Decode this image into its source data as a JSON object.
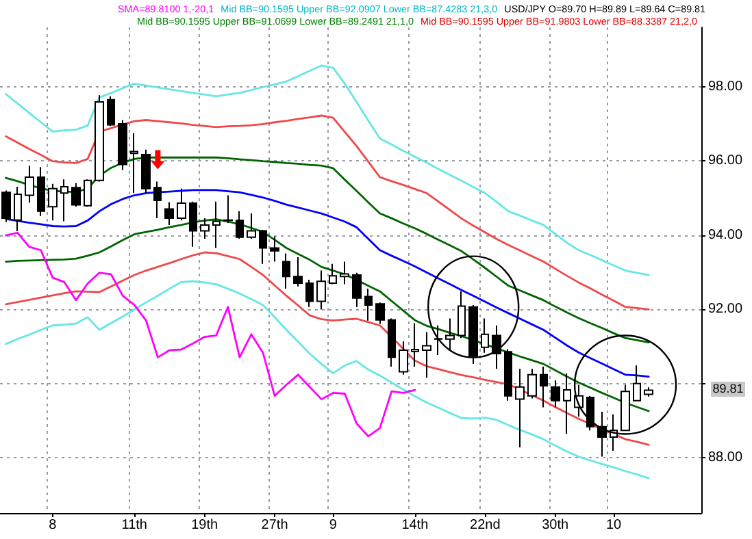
{
  "chart_data": {
    "type": "candlestick",
    "annotations": [
      "SMA=89.8100 1,-20,1",
      "Mid BB=90.1595 Upper BB=92.0907 Lower BB=87.4283 21,3,0",
      "USD/JPY O=89.70 H=89.89 L=89.64 C=89.81",
      "Mid BB=90.1595 Upper BB=91.0699 Lower BB=89.2491 21,1,0",
      "Mid BB=90.1595 Upper BB=91.9803 Lower BB=88.3387 21,2,0",
      "89.81"
    ],
    "categories": [
      null,
      null,
      null,
      null,
      "8",
      null,
      null,
      null,
      null,
      null,
      null,
      "11th",
      null,
      null,
      null,
      null,
      null,
      "19th",
      null,
      null,
      null,
      null,
      null,
      "27th",
      null,
      null,
      null,
      null,
      "9",
      null,
      null,
      null,
      null,
      null,
      null,
      "14th",
      null,
      null,
      null,
      null,
      null,
      "22nd",
      null,
      null,
      null,
      null,
      null,
      "30th",
      null,
      null,
      null,
      null,
      "10",
      null,
      null,
      null,
      null,
      null,
      null,
      null
    ],
    "ohlc": [
      [
        95.15,
        95.2,
        94.35,
        94.45
      ],
      [
        94.4,
        95.3,
        94.1,
        95.1
      ],
      [
        95.07,
        95.87,
        94.87,
        95.56
      ],
      [
        95.56,
        95.83,
        94.51,
        94.64
      ],
      [
        94.76,
        95.38,
        94.39,
        95.25
      ],
      [
        95.13,
        95.5,
        94.37,
        95.3
      ],
      [
        95.28,
        95.4,
        94.76,
        94.81
      ],
      [
        94.79,
        95.5,
        94.76,
        95.47
      ],
      [
        95.47,
        97.77,
        95.44,
        97.59
      ],
      [
        97.65,
        97.74,
        96.94,
        96.97
      ],
      [
        97.0,
        97.1,
        95.75,
        95.9
      ],
      [
        96.2,
        96.75,
        95.13,
        96.25
      ],
      [
        96.17,
        96.3,
        95.13,
        95.25
      ],
      [
        95.28,
        95.44,
        94.45,
        94.93
      ],
      [
        94.7,
        94.88,
        94.27,
        94.45
      ],
      [
        94.45,
        95.25,
        94.39,
        94.86
      ],
      [
        94.86,
        94.9,
        93.68,
        94.11
      ],
      [
        94.11,
        94.45,
        93.9,
        94.27
      ],
      [
        94.27,
        94.9,
        93.65,
        94.37
      ],
      [
        94.39,
        95.07,
        94.33,
        94.4
      ],
      [
        94.39,
        94.64,
        93.9,
        93.94
      ],
      [
        93.94,
        94.58,
        93.9,
        94.11
      ],
      [
        94.11,
        94.14,
        93.22,
        93.65
      ],
      [
        93.65,
        93.96,
        93.28,
        93.57
      ],
      [
        93.28,
        93.5,
        92.55,
        92.88
      ],
      [
        92.88,
        93.4,
        92.61,
        92.7
      ],
      [
        92.7,
        92.79,
        92.06,
        92.21
      ],
      [
        92.21,
        93.04,
        91.99,
        92.75
      ],
      [
        92.7,
        93.22,
        92.67,
        92.9
      ],
      [
        92.88,
        93.28,
        92.67,
        92.95
      ],
      [
        92.92,
        92.98,
        92.06,
        92.3
      ],
      [
        92.34,
        92.55,
        91.69,
        92.11
      ],
      [
        92.14,
        92.18,
        91.6,
        91.71
      ],
      [
        91.71,
        91.75,
        90.45,
        90.7
      ],
      [
        90.31,
        91.13,
        90.23,
        90.89
      ],
      [
        90.86,
        91.62,
        90.45,
        90.91
      ],
      [
        90.89,
        91.38,
        90.15,
        91.01
      ],
      [
        91.2,
        91.56,
        90.76,
        91.19
      ],
      [
        91.19,
        91.75,
        90.89,
        91.29
      ],
      [
        91.29,
        92.48,
        91.22,
        92.08
      ],
      [
        92.06,
        92.11,
        90.52,
        90.73
      ],
      [
        90.97,
        91.75,
        90.82,
        91.32
      ],
      [
        91.29,
        91.56,
        90.39,
        90.8
      ],
      [
        90.85,
        90.92,
        89.53,
        89.66
      ],
      [
        89.57,
        90.39,
        88.27,
        89.9
      ],
      [
        89.66,
        90.39,
        89.59,
        90.23
      ],
      [
        90.23,
        90.45,
        89.35,
        89.93
      ],
      [
        89.9,
        90.08,
        89.35,
        89.53
      ],
      [
        89.53,
        90.27,
        88.63,
        89.82
      ],
      [
        89.35,
        89.96,
        89.1,
        89.66
      ],
      [
        89.62,
        89.66,
        88.73,
        88.83
      ],
      [
        88.83,
        89.23,
        88.02,
        88.55
      ],
      [
        88.55,
        89.16,
        88.18,
        88.73
      ],
      [
        88.73,
        89.96,
        88.71,
        89.78
      ],
      [
        89.53,
        90.48,
        89.53,
        89.99
      ],
      [
        89.7,
        89.89,
        89.64,
        89.81
      ],
      null,
      null,
      null,
      null
    ],
    "series": [
      {
        "type": "line",
        "color": "#66e6e6",
        "values": [
          97.8,
          97.55,
          97.29,
          97.04,
          96.79,
          96.82,
          96.84,
          96.95,
          97.71,
          97.83,
          97.96,
          98.08,
          98.03,
          97.98,
          97.93,
          97.88,
          97.83,
          97.79,
          97.74,
          97.79,
          97.83,
          97.91,
          97.99,
          98.06,
          98.14,
          98.28,
          98.43,
          98.57,
          98.51,
          98.08,
          97.59,
          97.09,
          96.6,
          96.44,
          96.27,
          96.11,
          95.95,
          95.78,
          95.62,
          95.46,
          95.29,
          95.13,
          94.89,
          94.64,
          94.52,
          94.39,
          94.27,
          94.03,
          93.79,
          93.59,
          93.46,
          93.32,
          93.18,
          93.04,
          92.98,
          92.92,
          null,
          null,
          null,
          null
        ]
      },
      {
        "type": "line",
        "color": "#f04848",
        "values": [
          96.66,
          96.49,
          96.32,
          96.16,
          95.99,
          95.96,
          95.94,
          96.05,
          96.79,
          96.88,
          96.98,
          97.07,
          97.1,
          97.07,
          97.04,
          97.01,
          96.97,
          96.94,
          96.91,
          96.93,
          96.94,
          96.96,
          96.99,
          97.04,
          97.08,
          97.13,
          97.17,
          97.22,
          97.16,
          96.78,
          96.4,
          95.98,
          95.56,
          95.45,
          95.35,
          95.24,
          95.13,
          94.9,
          94.67,
          94.44,
          94.25,
          94.07,
          93.89,
          93.73,
          93.58,
          93.43,
          93.28,
          93.09,
          92.9,
          92.72,
          92.56,
          92.39,
          92.23,
          92.06,
          92.03,
          91.99,
          null,
          null,
          null,
          null
        ]
      },
      {
        "type": "line",
        "color": "#006400",
        "values": [
          95.54,
          95.45,
          95.35,
          95.26,
          95.19,
          95.17,
          95.16,
          95.25,
          95.6,
          95.81,
          95.95,
          96.05,
          96.09,
          96.09,
          96.09,
          96.09,
          96.09,
          96.09,
          96.09,
          96.07,
          96.04,
          96.02,
          95.99,
          95.97,
          95.94,
          95.92,
          95.89,
          95.87,
          95.8,
          95.49,
          95.19,
          94.88,
          94.58,
          94.45,
          94.31,
          94.18,
          94.03,
          93.87,
          93.72,
          93.56,
          93.34,
          93.11,
          92.87,
          92.63,
          92.5,
          92.37,
          92.24,
          92.07,
          91.91,
          91.76,
          91.62,
          91.49,
          91.35,
          91.22,
          91.16,
          91.1,
          null,
          null,
          null,
          null
        ]
      },
      {
        "type": "line",
        "color": "#0000ff",
        "values": [
          94.43,
          94.38,
          94.33,
          94.29,
          94.24,
          94.23,
          94.24,
          94.39,
          94.64,
          94.83,
          94.97,
          95.07,
          95.13,
          95.15,
          95.17,
          95.19,
          95.21,
          95.21,
          95.21,
          95.18,
          95.15,
          95.08,
          95.01,
          94.92,
          94.82,
          94.74,
          94.66,
          94.58,
          94.47,
          94.36,
          94.21,
          93.9,
          93.59,
          93.44,
          93.3,
          93.15,
          92.99,
          92.83,
          92.67,
          92.51,
          92.36,
          92.2,
          92.04,
          91.89,
          91.74,
          91.59,
          91.44,
          91.23,
          91.02,
          90.83,
          90.68,
          90.53,
          90.38,
          90.23,
          90.21,
          90.18,
          null,
          null,
          null,
          null
        ]
      },
      {
        "type": "line",
        "color": "#006400",
        "values": [
          93.28,
          93.3,
          93.31,
          93.32,
          93.33,
          93.34,
          93.36,
          93.44,
          93.53,
          93.69,
          93.86,
          94.02,
          94.08,
          94.14,
          94.21,
          94.27,
          94.34,
          94.39,
          94.42,
          94.36,
          94.29,
          94.19,
          94.08,
          93.87,
          93.65,
          93.49,
          93.33,
          93.14,
          93.04,
          92.94,
          92.79,
          92.63,
          92.48,
          92.22,
          91.96,
          91.7,
          91.55,
          91.46,
          91.36,
          91.27,
          91.16,
          91.05,
          90.94,
          90.83,
          90.72,
          90.62,
          90.52,
          90.35,
          90.18,
          90.02,
          89.88,
          89.74,
          89.61,
          89.47,
          89.36,
          89.25,
          null,
          null,
          null,
          null
        ]
      },
      {
        "type": "line",
        "color": "#f04848",
        "values": [
          92.13,
          92.19,
          92.25,
          92.31,
          92.37,
          92.43,
          92.48,
          92.47,
          92.46,
          92.61,
          92.77,
          92.92,
          93.04,
          93.14,
          93.24,
          93.35,
          93.45,
          93.53,
          93.51,
          93.43,
          93.35,
          93.14,
          92.92,
          92.64,
          92.36,
          92.1,
          91.83,
          91.73,
          91.69,
          91.72,
          91.74,
          91.65,
          91.56,
          91.25,
          90.93,
          90.61,
          90.46,
          90.38,
          90.3,
          90.22,
          90.16,
          90.09,
          90.03,
          89.97,
          89.83,
          89.68,
          89.53,
          89.36,
          89.2,
          89.04,
          88.9,
          88.76,
          88.63,
          88.49,
          88.42,
          88.34,
          null,
          null,
          null,
          null
        ]
      },
      {
        "type": "line",
        "color": "#66e6e6",
        "values": [
          91.06,
          91.19,
          91.31,
          91.44,
          91.56,
          91.58,
          91.61,
          91.78,
          91.44,
          91.62,
          91.8,
          91.99,
          92.18,
          92.36,
          92.55,
          92.73,
          92.75,
          92.72,
          92.67,
          92.55,
          92.42,
          92.27,
          92.11,
          91.78,
          91.44,
          91.12,
          90.8,
          90.52,
          90.27,
          90.48,
          90.6,
          90.37,
          90.21,
          90.02,
          89.83,
          89.65,
          89.48,
          89.34,
          89.2,
          89.06,
          89.05,
          89.07,
          89.01,
          88.87,
          88.74,
          88.62,
          88.49,
          88.32,
          88.16,
          88.02,
          87.92,
          87.82,
          87.73,
          87.63,
          87.54,
          87.44,
          null,
          null,
          null,
          null
        ]
      },
      {
        "type": "line",
        "color": "#ff00ff",
        "values": [
          93.99,
          94.06,
          93.68,
          93.59,
          92.85,
          92.73,
          92.24,
          92.69,
          92.98,
          92.94,
          92.36,
          92.11,
          91.69,
          90.7,
          90.89,
          90.91,
          91.07,
          91.25,
          91.29,
          92.06,
          90.7,
          91.32,
          90.82,
          89.66,
          89.96,
          90.23,
          89.9,
          89.57,
          89.74,
          89.72,
          88.92,
          88.57,
          88.79,
          89.78,
          89.74,
          89.82,
          null,
          null,
          null,
          null,
          null,
          null,
          null,
          null,
          null,
          null,
          null,
          null,
          null,
          null,
          null,
          null,
          null,
          null,
          null,
          null,
          null,
          null,
          null,
          null
        ]
      }
    ],
    "ylim": [
      86.5,
      99.6
    ],
    "yticks": [
      {
        "value": 88,
        "label": "88.00"
      },
      {
        "value": 90,
        "label": null
      },
      {
        "value": 92,
        "label": "92.00"
      },
      {
        "value": 94,
        "label": "94.00"
      },
      {
        "value": 96,
        "label": "96.00"
      },
      {
        "value": 98,
        "label": "98.00"
      }
    ],
    "grid": true,
    "marker": "none"
  }
}
